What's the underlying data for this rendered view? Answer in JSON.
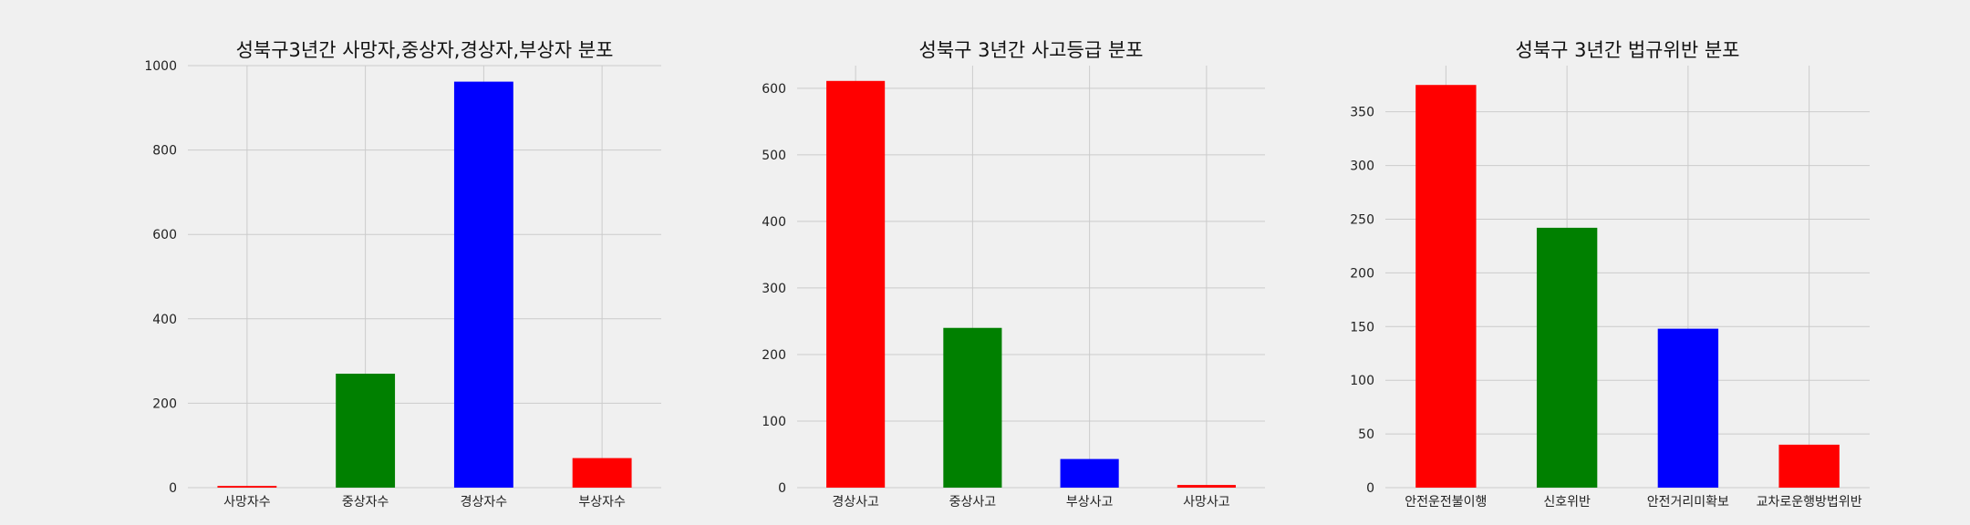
{
  "chart_data": [
    {
      "type": "bar",
      "title": "성북구3년간 사망자,중상자,경상자,부상자 분포",
      "categories": [
        "사망자수",
        "중상자수",
        "경상자수",
        "부상자수"
      ],
      "values": [
        4,
        270,
        962,
        70
      ],
      "colors": [
        "#ff0000",
        "#008000",
        "#0000ff",
        "#ff0000"
      ],
      "ylim": [
        0,
        1000
      ],
      "yticks": [
        0,
        200,
        400,
        600,
        800,
        1000
      ],
      "xlabel": "",
      "ylabel": "",
      "grid": true,
      "legend": false
    },
    {
      "type": "bar",
      "title": "성북구 3년간 사고등급 분포",
      "categories": [
        "경상사고",
        "중상사고",
        "부상사고",
        "사망사고"
      ],
      "values": [
        611,
        240,
        43,
        4
      ],
      "colors": [
        "#ff0000",
        "#008000",
        "#0000ff",
        "#ff0000"
      ],
      "ylim": [
        0,
        634
      ],
      "yticks": [
        0,
        100,
        200,
        300,
        400,
        500,
        600
      ],
      "xlabel": "",
      "ylabel": "",
      "grid": true,
      "legend": false
    },
    {
      "type": "bar",
      "title": "성북구 3년간 법규위반 분포",
      "categories": [
        "안전운전불이행",
        "신호위반",
        "안전거리미확보",
        "교차로운행방법위반"
      ],
      "values": [
        375,
        242,
        148,
        40
      ],
      "colors": [
        "#ff0000",
        "#008000",
        "#0000ff",
        "#ff0000"
      ],
      "ylim": [
        0,
        393
      ],
      "yticks": [
        0,
        50,
        100,
        150,
        200,
        250,
        300,
        350
      ],
      "xlabel": "",
      "ylabel": "",
      "grid": true,
      "legend": false
    }
  ]
}
